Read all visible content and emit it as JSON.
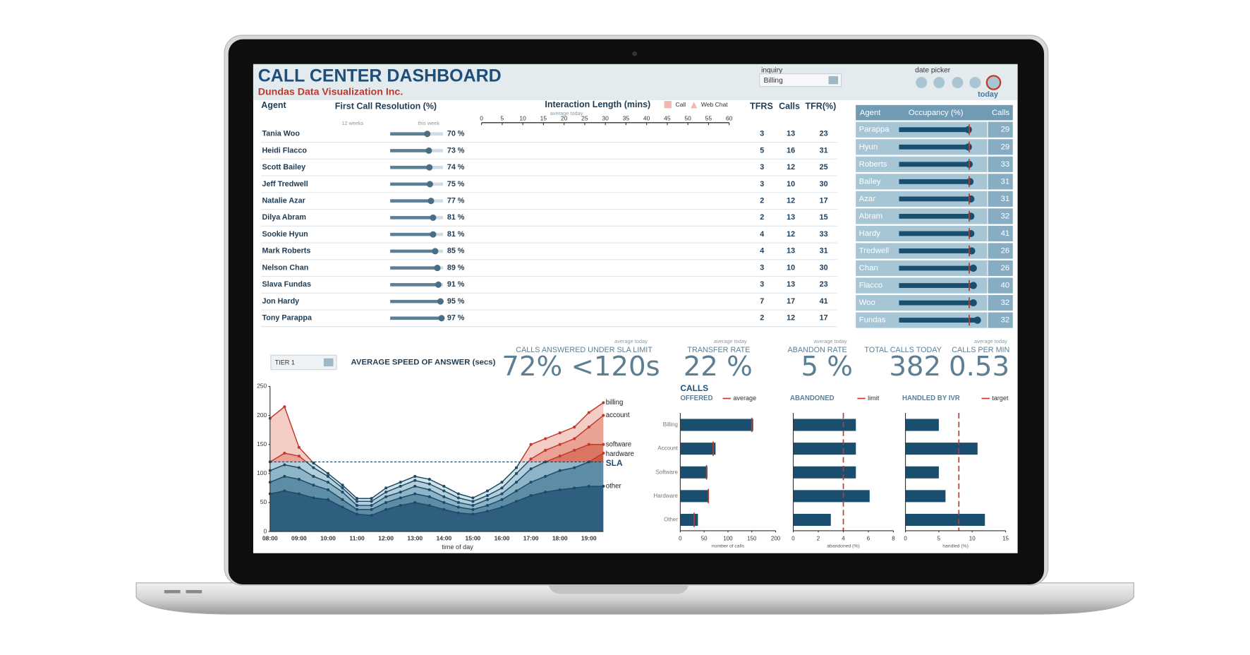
{
  "header": {
    "title": "CALL CENTER DASHBOARD",
    "subtitle": "Dundas Data Visualization Inc.",
    "inquiry_label": "inquiry",
    "inquiry_value": "Billing",
    "date_picker_label": "date picker",
    "today": "today"
  },
  "agents": {
    "columns": {
      "agent": "Agent",
      "fcr": "First Call Resolution (%)",
      "fcr_weeks": "12 weeks",
      "fcr_week": "this week",
      "interaction": "Interaction Length (mins)",
      "legend_call": "Call",
      "legend_chat": "Web Chat",
      "average_today": "average today",
      "tfrs": "TFRS",
      "calls": "Calls",
      "tfr": "TFR(%)"
    },
    "interaction_xlim": [
      0,
      60
    ],
    "interaction_xticks": [
      0,
      5,
      10,
      15,
      20,
      25,
      30,
      35,
      40,
      45,
      50,
      55,
      60
    ],
    "fcr_xlim": [
      0,
      100
    ],
    "names": [
      "Tania Woo",
      "Heidi Flacco",
      "Scott Bailey",
      "Jeff Tredwell",
      "Natalie Azar",
      "Dilya Abram",
      "Sookie Hyun",
      "Mark Roberts",
      "Nelson Chan",
      "Slava Fundas",
      "Jon Hardy",
      "Tony Parappa"
    ],
    "fcr": {
      "values": [
        70,
        73,
        74,
        75,
        77,
        81,
        81,
        85,
        89,
        91,
        95,
        97
      ],
      "value_labels": [
        "70 %",
        "73 %",
        "74 %",
        "75 %",
        "77 %",
        "81 %",
        "81 %",
        "85 %",
        "89 %",
        "91 %",
        "95 %",
        "97 %"
      ]
    },
    "tfrs": [
      3,
      5,
      3,
      3,
      2,
      2,
      4,
      4,
      3,
      3,
      7,
      2
    ],
    "calls": [
      13,
      16,
      12,
      10,
      12,
      13,
      12,
      13,
      10,
      13,
      17,
      12
    ],
    "tfr": [
      23,
      31,
      25,
      30,
      17,
      15,
      33,
      31,
      30,
      23,
      41,
      17
    ]
  },
  "occupancy": {
    "columns": {
      "agent": "Agent",
      "occupancy": "Occupancy (%)",
      "calls": "Calls"
    },
    "xlim": [
      0,
      100
    ],
    "target": 85,
    "names": [
      "Parappa",
      "Hyun",
      "Roberts",
      "Bailey",
      "Azar",
      "Abram",
      "Hardy",
      "Tredwell",
      "Chan",
      "Flacco",
      "Woo",
      "Fundas"
    ],
    "values": [
      84,
      84,
      85,
      86,
      87,
      87,
      87,
      88,
      90,
      90,
      90,
      95
    ],
    "calls": [
      29,
      29,
      33,
      31,
      31,
      32,
      41,
      26,
      26,
      40,
      32,
      32
    ]
  },
  "tier": "TIER 1",
  "kpis": [
    {
      "note": "average today",
      "title": "CALLS ANSWERED UNDER SLA LIMIT",
      "value": "72% <120s"
    },
    {
      "note": "average today",
      "title": "TRANSFER RATE",
      "value": "22 %"
    },
    {
      "note": "average today",
      "title": "ABANDON RATE",
      "value": "5 %"
    },
    {
      "title": "TOTAL CALLS TODAY",
      "value": "382"
    },
    {
      "note": "average today",
      "title": "CALLS PER MIN",
      "value": "0.53"
    }
  ],
  "charts": {
    "speed": {
      "type": "area",
      "title": "AVERAGE SPEED OF ANSWER (secs)",
      "x_label": "time of day",
      "stacked": true,
      "categories": [
        "08:00",
        null,
        "09:00",
        null,
        "10:00",
        null,
        "11:00",
        null,
        "12:00",
        null,
        "13:00",
        null,
        "14:00",
        null,
        "15:00",
        null,
        "16:00",
        null,
        "17:00",
        null,
        "18:00",
        null,
        "19:00",
        null
      ],
      "ylim": [
        0,
        250
      ],
      "yticks": [
        0,
        50,
        100,
        150,
        200,
        250
      ],
      "sla": 120,
      "sla_label": "SLA",
      "series": [
        {
          "name": "other",
          "color": "#2f5f7e",
          "above_sla_color": "#b9452f",
          "values": [
            65,
            70,
            65,
            58,
            55,
            42,
            30,
            28,
            38,
            45,
            50,
            45,
            38,
            32,
            30,
            35,
            42,
            52,
            62,
            68,
            72,
            75,
            78,
            78
          ]
        },
        {
          "name": "hardware",
          "color": "#5d8ca6",
          "above_sla_color": "#c95a43",
          "values": [
            20,
            25,
            25,
            22,
            17,
            13,
            8,
            10,
            12,
            13,
            15,
            15,
            12,
            10,
            8,
            10,
            13,
            18,
            23,
            27,
            33,
            35,
            42,
            57
          ]
        },
        {
          "name": "software",
          "color": "#8db4c7",
          "above_sla_color": "#db7663",
          "values": [
            20,
            20,
            20,
            15,
            13,
            13,
            7,
            7,
            10,
            10,
            13,
            12,
            10,
            8,
            7,
            10,
            10,
            15,
            23,
            25,
            25,
            30,
            30,
            15
          ]
        },
        {
          "name": "account",
          "color": "#b3cfdb",
          "above_sla_color": "#e9a294",
          "values": [
            15,
            20,
            20,
            15,
            10,
            7,
            7,
            7,
            8,
            10,
            10,
            10,
            10,
            8,
            7,
            7,
            10,
            15,
            17,
            20,
            20,
            20,
            30,
            50
          ]
        },
        {
          "name": "billing",
          "color": "#d3e3ea",
          "above_sla_color": "#f3cdc6",
          "values": [
            75,
            80,
            15,
            8,
            5,
            5,
            5,
            5,
            7,
            7,
            7,
            8,
            8,
            7,
            6,
            8,
            10,
            10,
            25,
            20,
            20,
            20,
            25,
            22
          ]
        }
      ]
    },
    "offered": {
      "type": "bar",
      "supertitle": "CALLS",
      "title": "OFFERED",
      "x_label": "number of calls",
      "show_categories": true,
      "categories": [
        "Billing",
        "Account",
        "Software",
        "Hardware",
        "Other"
      ],
      "values": [
        153,
        74,
        57,
        60,
        37
      ],
      "color": "#1a4e6e",
      "xlim": [
        0,
        200
      ],
      "xticks": [
        0,
        50,
        100,
        150,
        200
      ],
      "reference": {
        "name": "average",
        "color": "#c0392b",
        "values": [
          150,
          69,
          55,
          59,
          29
        ]
      }
    },
    "abandoned": {
      "type": "bar",
      "title": "ABANDONED",
      "x_label": "abandoned (%)",
      "show_categories": false,
      "categories": [
        "Billing",
        "Account",
        "Software",
        "Hardware",
        "Other"
      ],
      "values": [
        5,
        5,
        5,
        6.1,
        3
      ],
      "color": "#1a4e6e",
      "xlim": [
        0,
        8
      ],
      "xticks": [
        0,
        2,
        4,
        6,
        8
      ],
      "reference": {
        "name": "limit",
        "color": "#c0392b",
        "value": 4
      }
    },
    "ivr": {
      "type": "bar",
      "title": "HANDLED BY IVR",
      "x_label": "handled (%)",
      "show_categories": false,
      "categories": [
        "Billing",
        "Account",
        "Software",
        "Hardware",
        "Other"
      ],
      "values": [
        5,
        10.8,
        5,
        6,
        11.9
      ],
      "color": "#1a4e6e",
      "xlim": [
        0,
        15
      ],
      "xticks": [
        0,
        5,
        10,
        15
      ],
      "reference": {
        "name": "target",
        "color": "#c0392b",
        "value": 8
      }
    }
  }
}
